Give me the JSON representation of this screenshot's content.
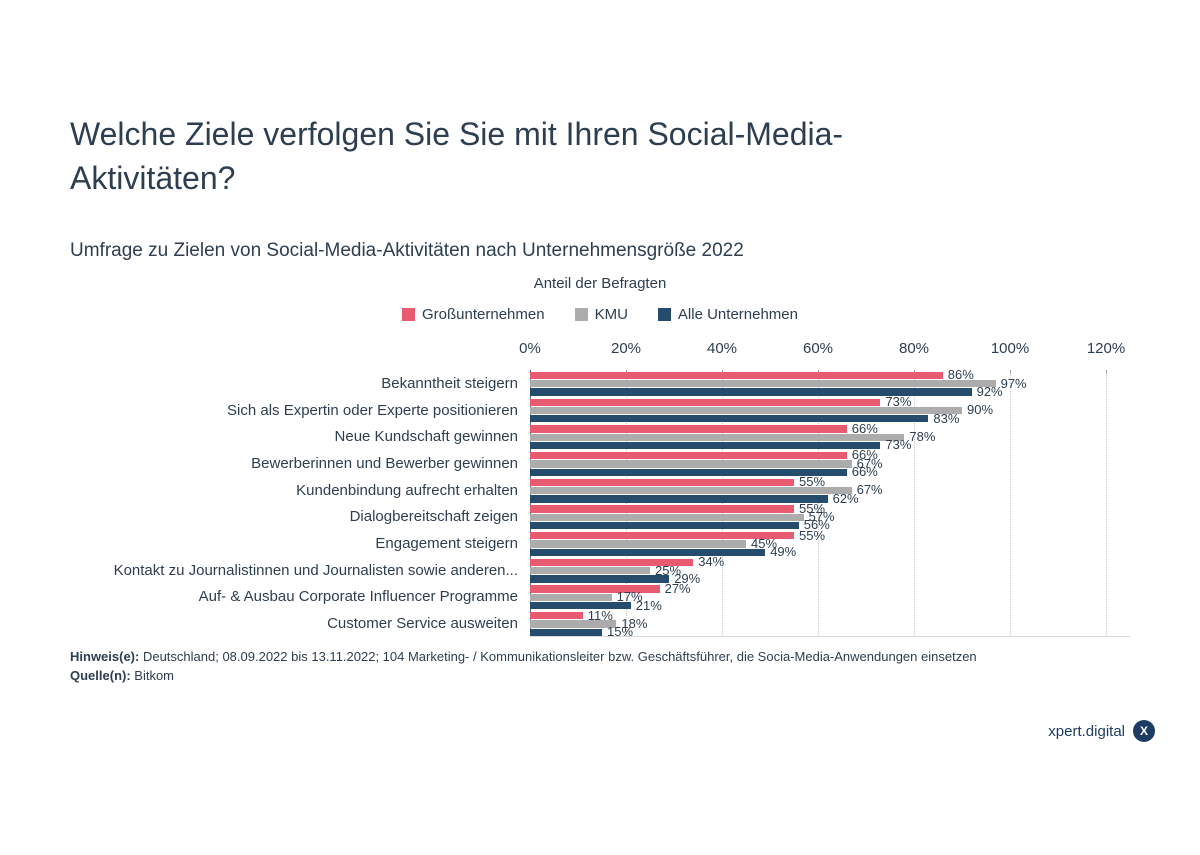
{
  "title": "Welche Ziele verfolgen Sie Sie mit Ihren Social-Media-Aktivitäten?",
  "subtitle": "Umfrage zu Zielen von Social-Media-Aktivitäten nach Unternehmensgröße 2022",
  "chart_data": {
    "type": "bar",
    "orientation": "horizontal",
    "axis_title": "Anteil der Befragten",
    "xlabel": "Anteil der Befragten",
    "xlim": [
      0,
      120
    ],
    "x_tick_step": 20,
    "x_tick_labels": [
      "0%",
      "20%",
      "40%",
      "60%",
      "80%",
      "100%",
      "120%"
    ],
    "grid": "dotted-vertical",
    "legend_position": "top-center",
    "categories": [
      "Bekanntheit steigern",
      "Sich als Expertin oder Experte positionieren",
      "Neue Kundschaft gewinnen",
      "Bewerberinnen und Bewerber gewinnen",
      "Kundenbindung aufrecht erhalten",
      "Dialogbereitschaft zeigen",
      "Engagement steigern",
      "Kontakt zu Journalistinnen und Journalisten sowie anderen...",
      "Auf- & Ausbau Corporate Influencer Programme",
      "Customer Service ausweiten"
    ],
    "series": [
      {
        "name": "Großunternehmen",
        "color": "#e85a70",
        "values": [
          86,
          73,
          66,
          66,
          55,
          55,
          55,
          34,
          27,
          11
        ]
      },
      {
        "name": "KMU",
        "color": "#acacac",
        "values": [
          97,
          90,
          78,
          67,
          67,
          57,
          45,
          25,
          17,
          18
        ]
      },
      {
        "name": "Alle Unternehmen",
        "color": "#254c6d",
        "values": [
          92,
          83,
          73,
          66,
          62,
          56,
          49,
          29,
          21,
          15
        ]
      }
    ],
    "value_suffix": "%"
  },
  "footer": {
    "hinweis_label": "Hinweis(e):",
    "hinweis_text": " Deutschland; 08.09.2022 bis 13.11.2022; 104 Marketing- / Kommunikationsleiter bzw. Geschäftsführer, die Socia-Media-Anwendungen einsetzen",
    "quelle_label": "Quelle(n):",
    "quelle_text": " Bitkom"
  },
  "branding": {
    "logo_text": "xpert.digital",
    "logo_badge": "X"
  },
  "colors": {
    "text": "#2d3e50",
    "brand_navy": "#1d3c63",
    "gridline": "#c8c8c8",
    "axis_line": "#5b6a78"
  }
}
